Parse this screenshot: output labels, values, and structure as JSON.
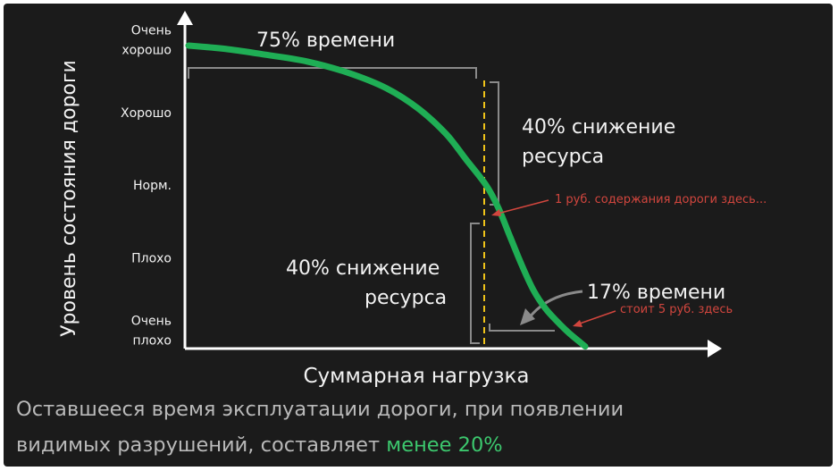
{
  "chart_data": {
    "type": "line",
    "xlabel": "Суммарная нагрузка",
    "ylabel": "Уровень состояния дороги",
    "y_ticks": [
      {
        "value": 5,
        "lines": [
          "Очень",
          "хорошо"
        ]
      },
      {
        "value": 4,
        "lines": [
          "Хорошо"
        ]
      },
      {
        "value": 3,
        "lines": [
          "Норм."
        ]
      },
      {
        "value": 2,
        "lines": [
          "Плохо"
        ]
      },
      {
        "value": 1,
        "lines": [
          "Очень",
          "плохо"
        ]
      }
    ],
    "ylim": [
      0.75,
      5.4
    ],
    "xlim": [
      0,
      100
    ],
    "grid": false,
    "series": [
      {
        "color": "#1fae55",
        "x": [
          0,
          10,
          20,
          30,
          40,
          50,
          58,
          65,
          70,
          75,
          78,
          81,
          84,
          87,
          90,
          93,
          96,
          100
        ],
        "y": [
          4.92,
          4.87,
          4.79,
          4.7,
          4.55,
          4.33,
          4.05,
          3.7,
          3.35,
          3.0,
          2.7,
          2.3,
          1.9,
          1.55,
          1.3,
          1.12,
          0.96,
          0.78
        ]
      }
    ],
    "annotations": {
      "time75": "75% времени",
      "res1_line1": "40% снижение",
      "res1_line2": "ресурса",
      "res2_line1": "40% снижение",
      "res2_line2": "ресурса",
      "time17": "17% времени",
      "note1": "1 руб. содержания дороги здесь...",
      "note2": "стоит 5 руб. здесь"
    }
  },
  "caption": {
    "line1": "Оставшееся время эксплуатации дороги, при появлении",
    "line2_prefix": "видимых разрушений, составляет ",
    "line2_highlight": "менее 20%"
  },
  "colors": {
    "background": "#1b1b1b",
    "curve": "#1fae55",
    "highlight": "#3cc86e",
    "dashed_marker": "#f0c419",
    "note": "#d2463e",
    "bracket": "#8a8a8a"
  }
}
